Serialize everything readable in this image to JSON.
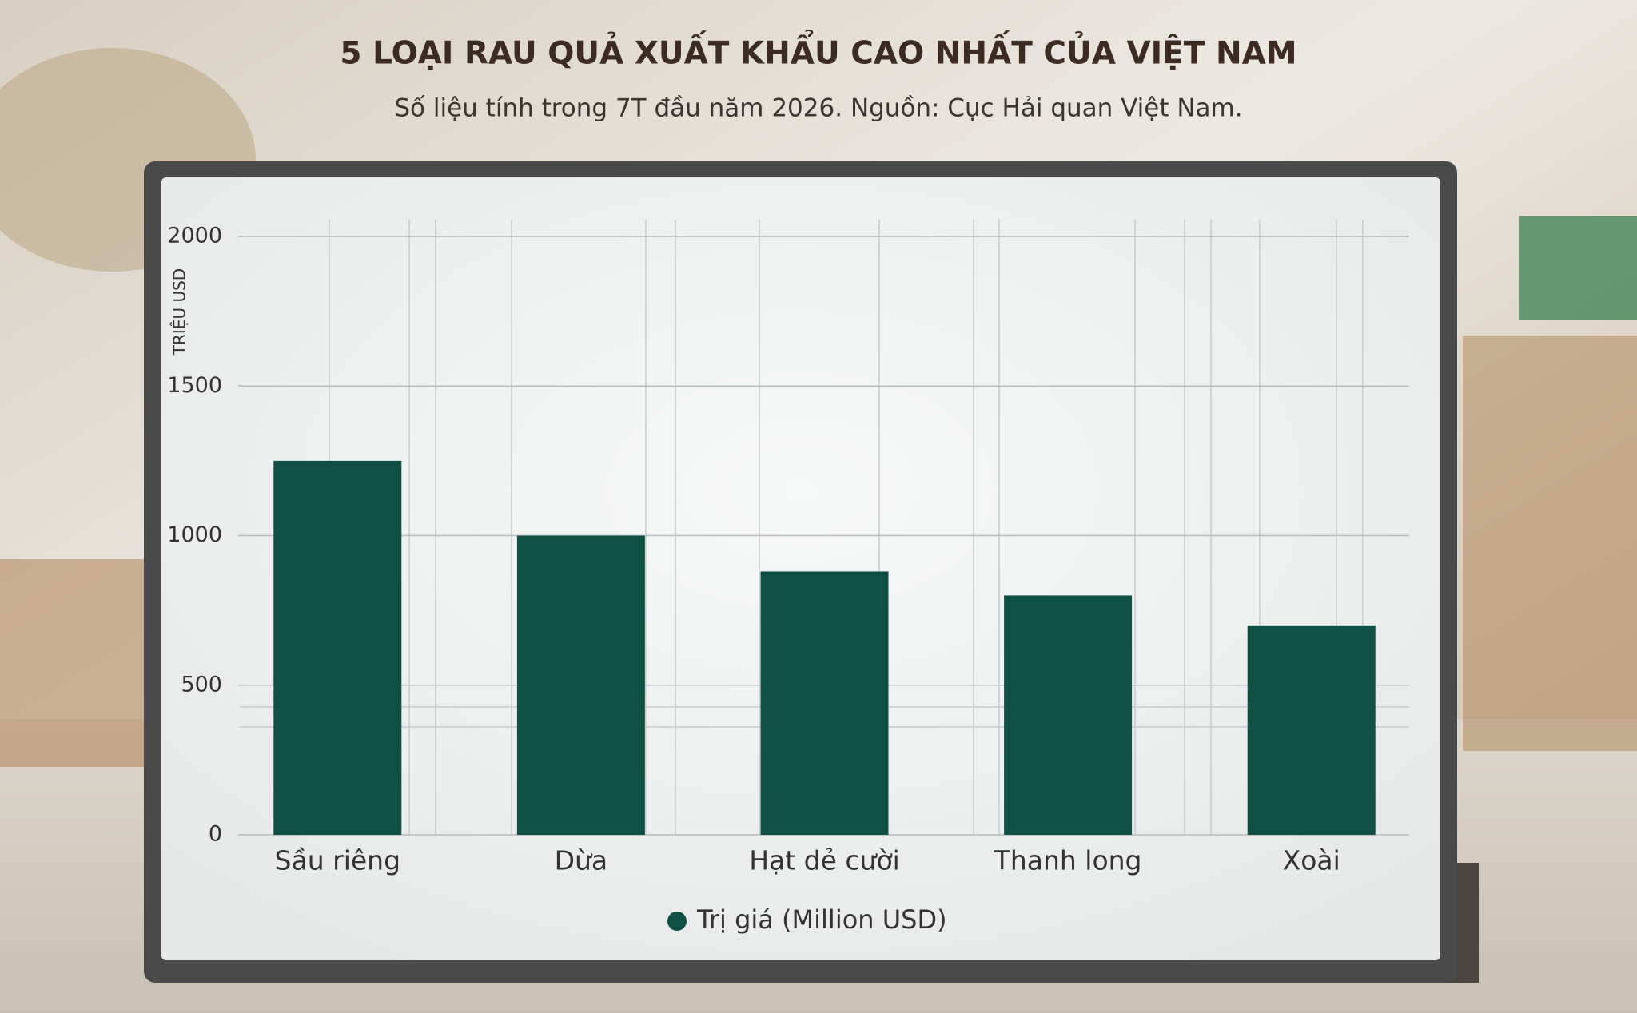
{
  "chart_data": {
    "type": "bar",
    "title": "5 LOẠI RAU QUẢ XUẤT KHẨU CAO NHẤT CỦA VIỆT NAM",
    "subtitle": "Số liệu tính trong 7T đầu năm 2026. Nguồn: Cục Hải quan Việt Nam.",
    "y_label": "TRIỆU USD",
    "categories": [
      "Sầu riêng",
      "Dừa",
      "Hạt dẻ cười",
      "Thanh long",
      "Xoài"
    ],
    "series": [
      {
        "name": "Trị giá (Million USD)",
        "color": "#0f4f45",
        "values": [
          1250,
          1000,
          880,
          800,
          700
        ]
      }
    ],
    "ylim": [
      0,
      2000
    ],
    "yticks": [
      0,
      500,
      1000,
      1500,
      2000
    ],
    "grid": true
  }
}
